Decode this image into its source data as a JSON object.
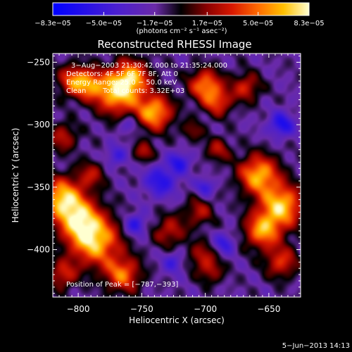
{
  "chart_data": {
    "type": "heatmap",
    "title": "Reconstructed RHESSI Image",
    "xlabel": "Heliocentric X (arcsec)",
    "ylabel": "Heliocentric Y (arcsec)",
    "xlim": [
      -820,
      -625
    ],
    "ylim": [
      -438,
      -243
    ],
    "x_ticks": [
      -800,
      -750,
      -700,
      -650
    ],
    "x_tick_labels": [
      "−800",
      "−750",
      "−700",
      "−650"
    ],
    "y_ticks": [
      -250,
      -300,
      -350,
      -400
    ],
    "y_tick_labels": [
      "−250",
      "−300",
      "−350",
      "−400"
    ],
    "colorbar": {
      "min": -8.3e-05,
      "max": 8.3e-05,
      "tick_labels": [
        "−8.3e−05",
        "−5.0e−05",
        "−1.7e−05",
        "1.7e−05",
        "5.0e−05",
        "8.3e−05"
      ],
      "unit_label": "(photons cm⁻² s⁻¹ asec⁻²)",
      "colors": [
        "#0000ff",
        "#4b1fd0",
        "#6a2aa8",
        "#000000",
        "#8a0000",
        "#d81800",
        "#ff6a00",
        "#ffc000",
        "#ffffd0"
      ]
    },
    "annotations": {
      "time_range": "3−Aug−2003 21:30:42.000 to 21:35:24.000",
      "detectors": "Detectors: 4F 5F 6F 7F 8F, Att 0",
      "energy_range": "Energy Range: 25.0 − 50.0 keV",
      "clean": "Clean",
      "total_counts": "Total counts: 3.32E+03",
      "peak": "Position of Peak = [−787,−393]"
    },
    "peak": {
      "x": -787,
      "y": -393
    },
    "blobs": [
      {
        "x": -803,
        "y": -265,
        "s": 9,
        "a": 0.75
      },
      {
        "x": -790,
        "y": -268,
        "s": 8,
        "a": 0.55
      },
      {
        "x": -770,
        "y": -275,
        "s": 12,
        "a": 0.95
      },
      {
        "x": -758,
        "y": -262,
        "s": 10,
        "a": 0.8
      },
      {
        "x": -740,
        "y": -290,
        "s": 10,
        "a": 0.95
      },
      {
        "x": -700,
        "y": -268,
        "s": 9,
        "a": 0.8
      },
      {
        "x": -690,
        "y": -282,
        "s": 8,
        "a": 0.6
      },
      {
        "x": -668,
        "y": -270,
        "s": 8,
        "a": 0.55
      },
      {
        "x": -812,
        "y": -310,
        "s": 8,
        "a": 0.5
      },
      {
        "x": -748,
        "y": -322,
        "s": 6,
        "a": 0.45
      },
      {
        "x": -790,
        "y": -340,
        "s": 8,
        "a": 0.45
      },
      {
        "x": -813,
        "y": -358,
        "s": 11,
        "a": 0.95
      },
      {
        "x": -800,
        "y": -375,
        "s": 12,
        "a": 0.85
      },
      {
        "x": -787,
        "y": -393,
        "s": 14,
        "a": 1.0
      },
      {
        "x": -765,
        "y": -420,
        "s": 10,
        "a": 0.75
      },
      {
        "x": -728,
        "y": -385,
        "s": 9,
        "a": 0.5
      },
      {
        "x": -705,
        "y": -370,
        "s": 8,
        "a": 0.45
      },
      {
        "x": -703,
        "y": -405,
        "s": 8,
        "a": 0.45
      },
      {
        "x": -695,
        "y": -418,
        "s": 7,
        "a": 0.4
      },
      {
        "x": -658,
        "y": -340,
        "s": 11,
        "a": 0.95
      },
      {
        "x": -640,
        "y": -365,
        "s": 12,
        "a": 1.0
      },
      {
        "x": -655,
        "y": -385,
        "s": 10,
        "a": 0.85
      },
      {
        "x": -640,
        "y": -410,
        "s": 9,
        "a": 0.6
      },
      {
        "x": -690,
        "y": -320,
        "s": 7,
        "a": 0.45
      },
      {
        "x": -710,
        "y": -305,
        "s": 6,
        "a": 0.35
      },
      {
        "x": -812,
        "y": -420,
        "s": 8,
        "a": 0.55
      },
      {
        "x": -640,
        "y": -300,
        "s": 7,
        "a": -0.6
      },
      {
        "x": -735,
        "y": -345,
        "s": 9,
        "a": -0.55
      },
      {
        "x": -755,
        "y": -380,
        "s": 6,
        "a": -0.55
      },
      {
        "x": -720,
        "y": -330,
        "s": 6,
        "a": -0.5
      },
      {
        "x": -700,
        "y": -350,
        "s": 5,
        "a": -0.45
      },
      {
        "x": -770,
        "y": -325,
        "s": 6,
        "a": -0.4
      },
      {
        "x": -725,
        "y": -410,
        "s": 6,
        "a": -0.4
      },
      {
        "x": -685,
        "y": -395,
        "s": 6,
        "a": -0.45
      },
      {
        "x": -760,
        "y": -300,
        "s": 5,
        "a": -0.35
      }
    ]
  },
  "footer": {
    "date_stamp": "5−Jun−2013 14:13"
  }
}
